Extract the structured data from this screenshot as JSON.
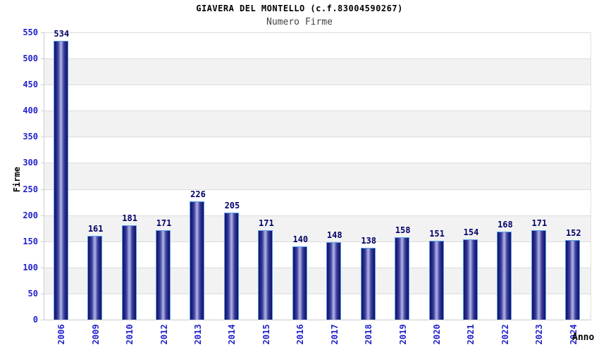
{
  "chart_data": {
    "type": "bar",
    "title": "GIAVERA DEL MONTELLO (c.f.83004590267)",
    "subtitle": "Numero Firme",
    "xlabel": "Anno",
    "ylabel": "Firme",
    "categories": [
      "2006",
      "2009",
      "2010",
      "2012",
      "2013",
      "2014",
      "2015",
      "2016",
      "2017",
      "2018",
      "2019",
      "2020",
      "2021",
      "2022",
      "2023",
      "2024"
    ],
    "values": [
      534,
      161,
      181,
      171,
      226,
      205,
      171,
      140,
      148,
      138,
      158,
      151,
      154,
      168,
      171,
      152
    ],
    "ylim": [
      0,
      550
    ],
    "ytick_step": 50,
    "grid": "horizontal-bands-alternating",
    "legend": "none",
    "colors": {
      "bar_edge_dark": "#14145f",
      "bar_center_light": "#b0b8e8",
      "bar_outline": "#55a0f0",
      "axis_tick_label": "#2222cc",
      "value_label": "#000066",
      "band_gray": "#f2f2f2",
      "gridline": "#dcdcdc",
      "title_color": "#000000",
      "subtitle_color": "#444444"
    }
  }
}
